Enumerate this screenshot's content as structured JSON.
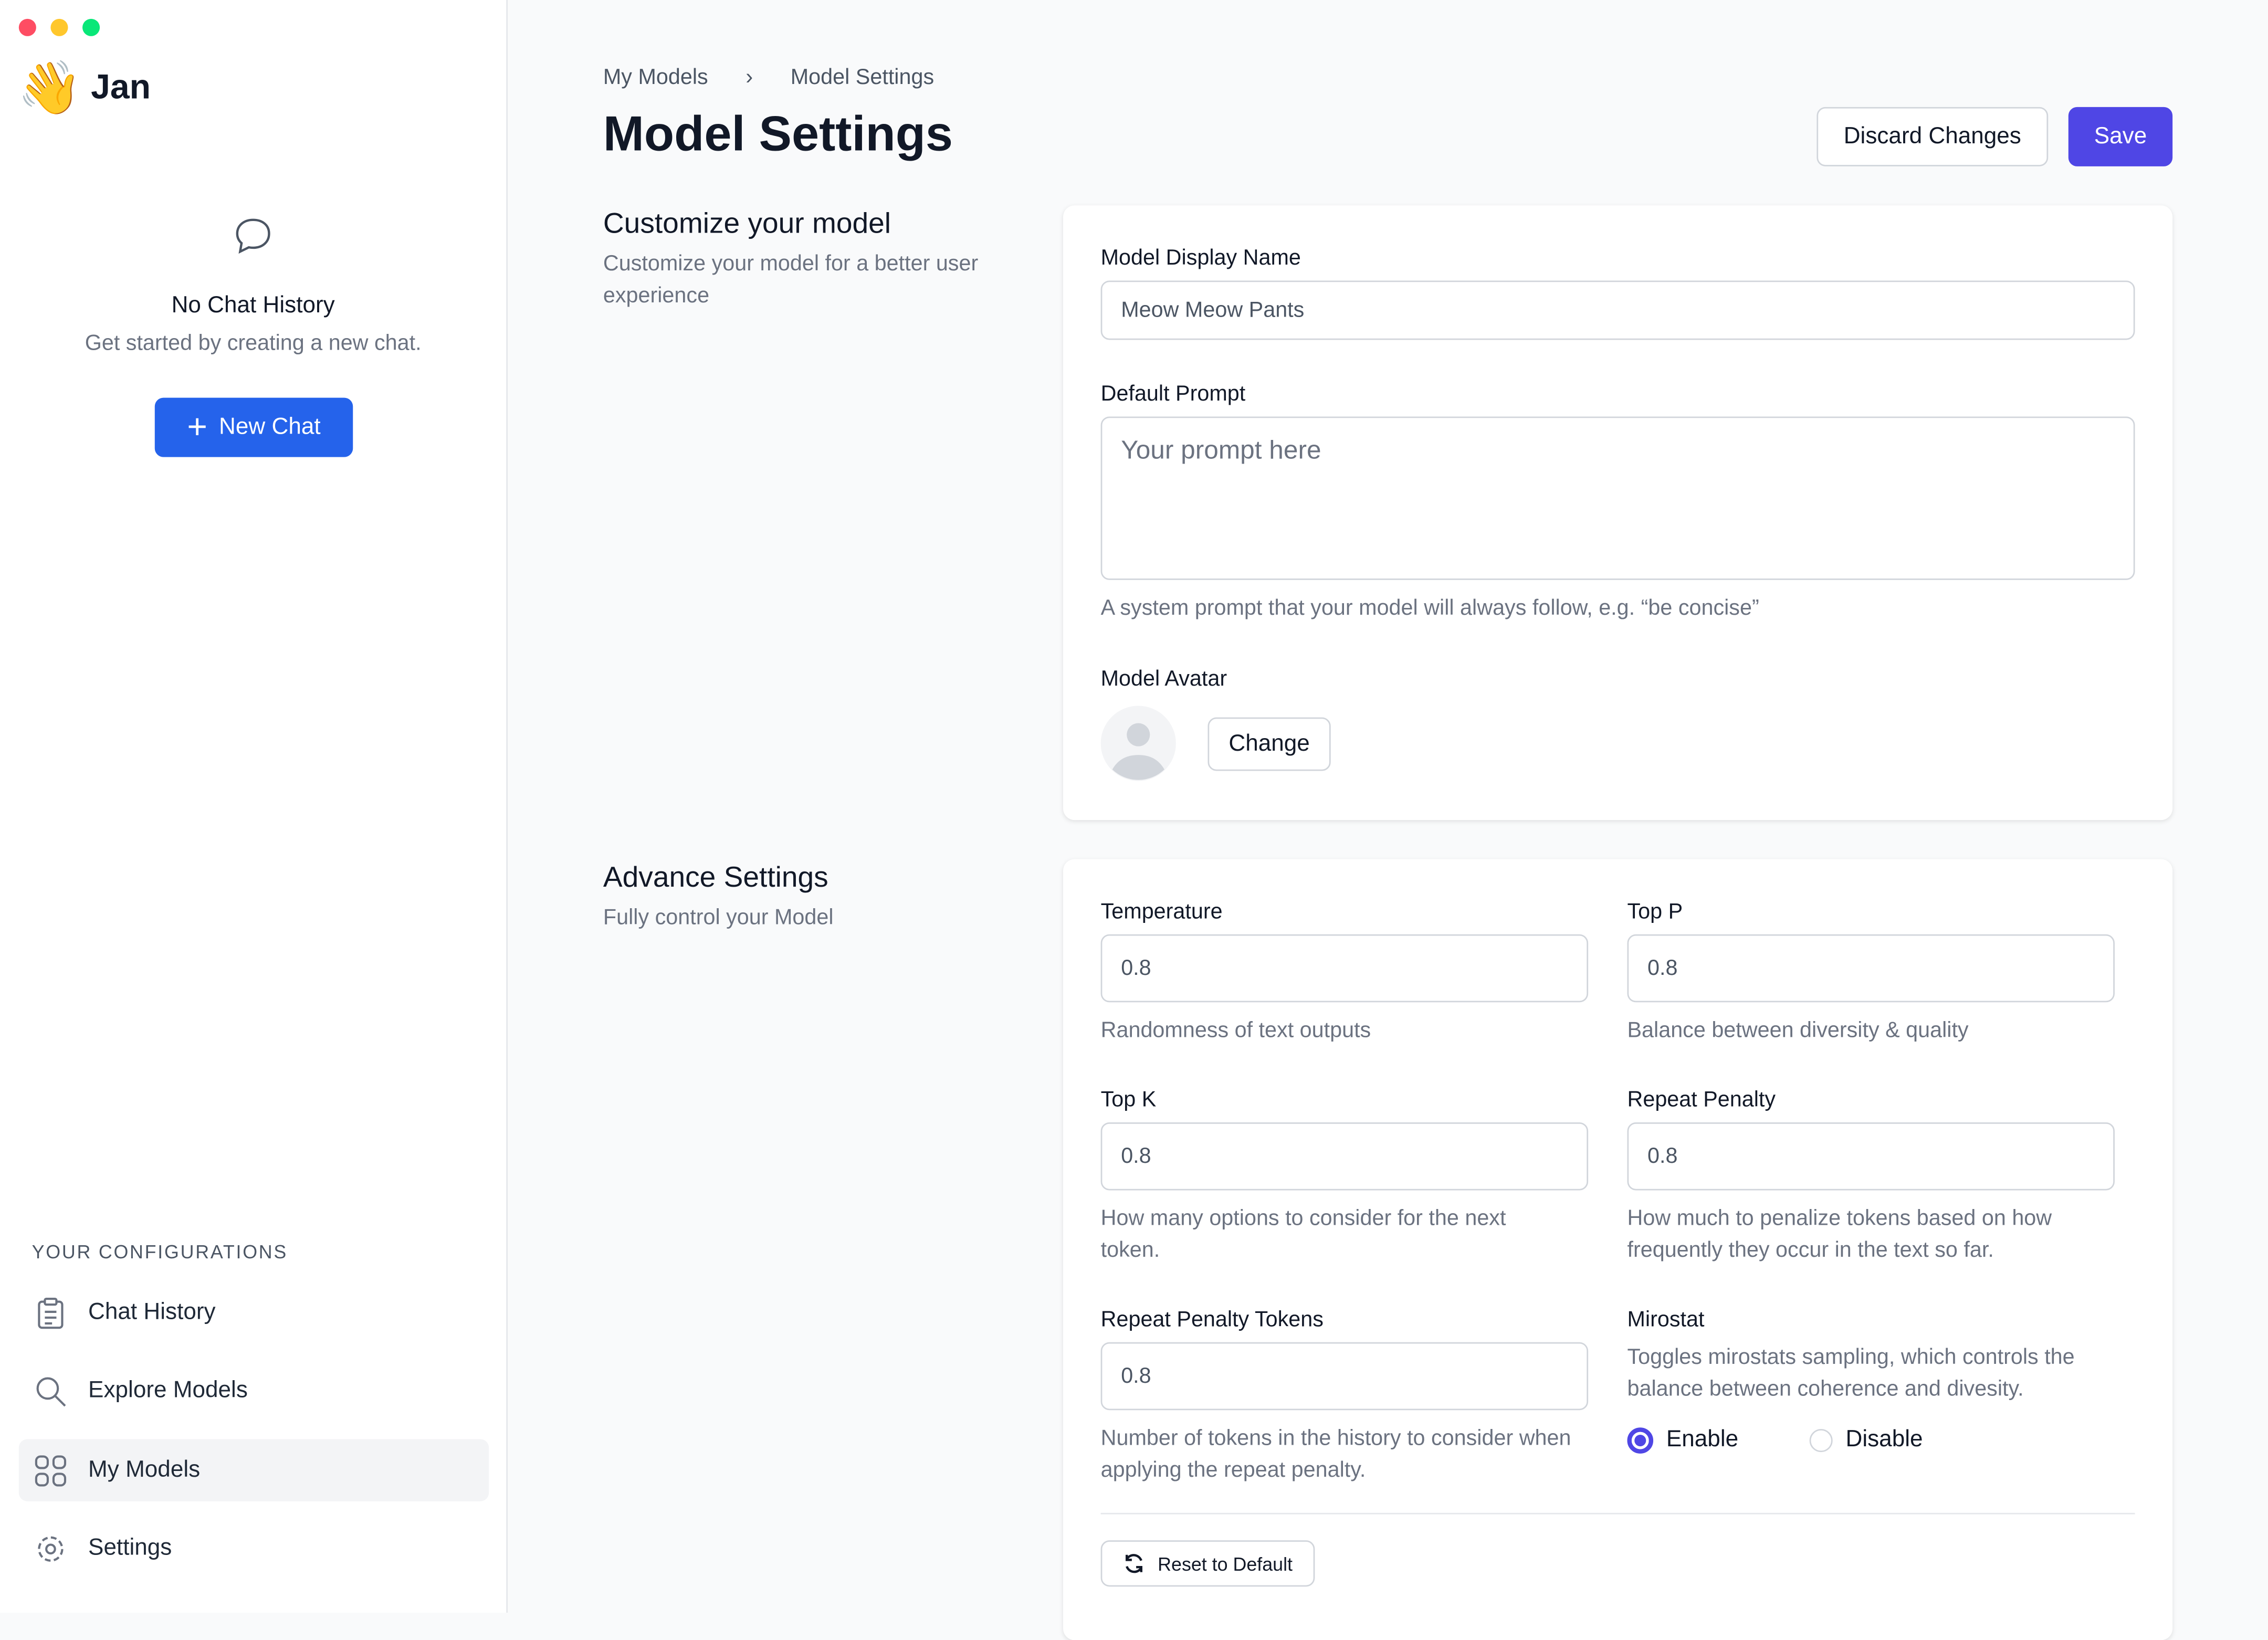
{
  "window": {
    "colors": {
      "close": "#fe4d63",
      "minimize": "#ffc72c",
      "maximize": "#09e778"
    }
  },
  "app": {
    "name": "Jan",
    "logo_emoji": "👋"
  },
  "sidebar": {
    "empty_title": "No Chat History",
    "empty_subtitle": "Get started by creating a new chat.",
    "new_chat": "New Chat",
    "section": "YOUR CONFIGURATIONS",
    "items": [
      {
        "label": "Chat History",
        "icon": "clipboard-icon"
      },
      {
        "label": "Explore Models",
        "icon": "search-icon"
      },
      {
        "label": "My Models",
        "icon": "grid-icon",
        "active": true
      },
      {
        "label": "Settings",
        "icon": "gear-icon"
      }
    ]
  },
  "breadcrumb": [
    "My Models",
    "Model Settings"
  ],
  "page_title": "Model Settings",
  "actions": {
    "discard": "Discard Changes",
    "save": "Save",
    "accent": "#4f46e5"
  },
  "customize": {
    "title": "Customize your model",
    "subtitle": "Customize your model for a better user experience",
    "display_name_label": "Model Display Name",
    "display_name_value": "Meow Meow Pants",
    "prompt_label": "Default Prompt",
    "prompt_placeholder": "Your prompt here",
    "prompt_help": "A system prompt that your model will always follow, e.g. “be concise”",
    "avatar_label": "Model Avatar",
    "change": "Change"
  },
  "advanced": {
    "title": "Advance Settings",
    "subtitle": "Fully control your Model",
    "temperature": {
      "label": "Temperature",
      "value": "0.8",
      "help": "Randomness of text outputs"
    },
    "top_p": {
      "label": "Top P",
      "value": "0.8",
      "help": "Balance between diversity & quality"
    },
    "top_k": {
      "label": "Top K",
      "value": "0.8",
      "help": "How many options to consider for the next token."
    },
    "repeat_penalty": {
      "label": "Repeat Penalty",
      "value": "0.8",
      "help": "How much to penalize tokens based on how frequently they occur in the text so far."
    },
    "repeat_penalty_tokens": {
      "label": "Repeat Penalty Tokens",
      "value": "0.8",
      "help": "Number of tokens in the history to consider when applying the repeat penalty."
    },
    "mirostat": {
      "label": "Mirostat",
      "help": "Toggles mirostats sampling, which controls the balance between coherence and divesity.",
      "enable": "Enable",
      "disable": "Disable",
      "selected": "Enable"
    },
    "reset": "Reset to Default"
  }
}
